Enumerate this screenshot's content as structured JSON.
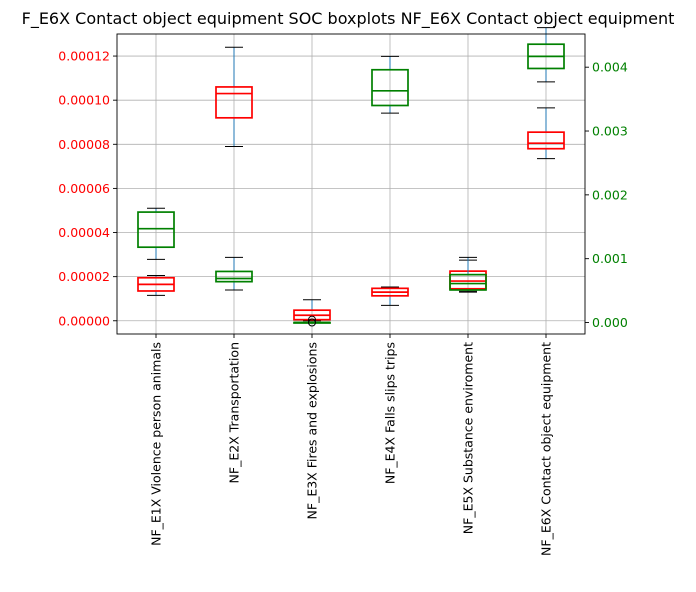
{
  "chart_data": {
    "type": "boxplot",
    "title": "F_E6X Contact object equipment SOC boxplots NF_E6X Contact object equipment",
    "categories": [
      "NF_E1X Violence person animals",
      "NF_E2X Transportation",
      "NF_E3X Fires and explosions",
      "NF_E4X Falls slips trips",
      "NF_E5X Substance enviroment",
      "NF_E6X Contact object equipment"
    ],
    "left_axis": {
      "ylim": [
        -6e-06,
        0.00013
      ],
      "ticks": [
        0,
        2e-05,
        4e-05,
        6e-05,
        8e-05,
        0.0001,
        0.00012
      ],
      "tick_labels": [
        "0.00000",
        "0.00002",
        "0.00004",
        "0.00006",
        "0.00008",
        "0.00010",
        "0.00012"
      ],
      "color": "#ff0000"
    },
    "right_axis": {
      "ylim": [
        -0.00018,
        0.00452
      ],
      "ticks": [
        0,
        0.001,
        0.002,
        0.003,
        0.004
      ],
      "tick_labels": [
        "0.000",
        "0.001",
        "0.002",
        "0.003",
        "0.004"
      ],
      "color": "#008000"
    },
    "grid": true,
    "series": [
      {
        "axis": "left",
        "color": "#ff0000",
        "boxes": [
          {
            "whislo": 1.15e-05,
            "q1": 1.35e-05,
            "med": 1.65e-05,
            "q3": 1.95e-05,
            "whishi": 2.05e-05
          },
          {
            "whislo": 7.9e-05,
            "q1": 9.2e-05,
            "med": 0.000103,
            "q3": 0.000106,
            "whishi": 0.000124
          },
          {
            "whislo": 0.0,
            "q1": 5e-07,
            "med": 2.5e-06,
            "q3": 4.8e-06,
            "whishi": 9.5e-06,
            "fliers": [
              5e-07
            ]
          },
          {
            "whislo": 7e-06,
            "q1": 1.13e-05,
            "med": 1.3e-05,
            "q3": 1.47e-05,
            "whishi": 1.53e-05
          },
          {
            "whislo": 1.3e-05,
            "q1": 1.45e-05,
            "med": 1.8e-05,
            "q3": 2.25e-05,
            "whishi": 2.75e-05
          },
          {
            "whislo": 7.35e-05,
            "q1": 7.8e-05,
            "med": 8.05e-05,
            "q3": 8.55e-05,
            "whishi": 9.65e-05
          }
        ]
      },
      {
        "axis": "right",
        "color": "#008000",
        "boxes": [
          {
            "whislo": 0.00099,
            "q1": 0.00118,
            "med": 0.00147,
            "q3": 0.00173,
            "whishi": 0.00179
          },
          {
            "whislo": 0.00051,
            "q1": 0.00064,
            "med": 0.00069,
            "q3": 0.0008,
            "whishi": 0.00102
          },
          {
            "whislo": 0.0,
            "q1": 0.0,
            "med": 0.0,
            "q3": 0.0,
            "whishi": 0.0,
            "fliers": [
              0.0
            ]
          },
          {
            "whislo": 0.00328,
            "q1": 0.0034,
            "med": 0.00363,
            "q3": 0.00396,
            "whishi": 0.00417
          },
          {
            "whislo": 0.00049,
            "q1": 0.00051,
            "med": 0.00061,
            "q3": 0.00075,
            "whishi": 0.00102
          },
          {
            "whislo": 0.00377,
            "q1": 0.00398,
            "med": 0.00417,
            "q3": 0.00436,
            "whishi": 0.00462
          }
        ]
      }
    ]
  }
}
